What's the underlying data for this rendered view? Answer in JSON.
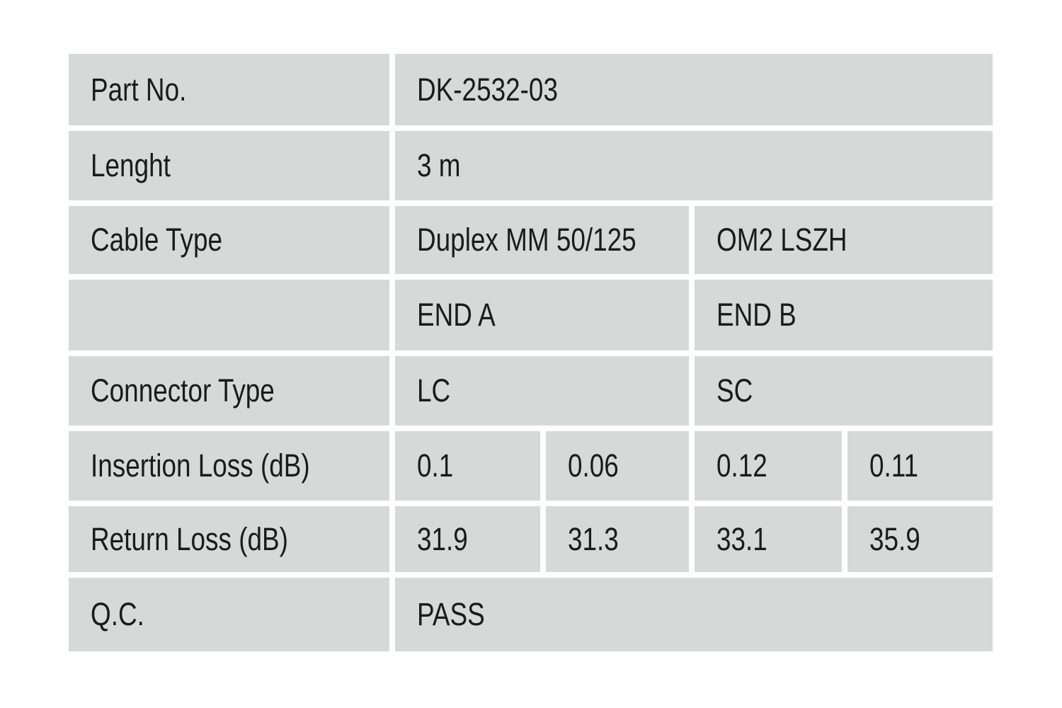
{
  "colors": {
    "page_background": "#ffffff",
    "cell_background": "#d7d8d8",
    "text": "#1b1b1b"
  },
  "table": {
    "rows": [
      {
        "label": "Part No.",
        "values": [
          "DK-2532-03"
        ]
      },
      {
        "label": "Lenght",
        "values": [
          "3 m"
        ]
      },
      {
        "label": "Cable Type",
        "values": [
          "Duplex MM 50/125",
          "OM2 LSZH"
        ]
      },
      {
        "label": "",
        "values": [
          "END A",
          "END B"
        ]
      },
      {
        "label": "Connector Type",
        "values": [
          "LC",
          "SC"
        ]
      },
      {
        "label": "Insertion Loss (dB)",
        "values": [
          "0.1",
          "0.06",
          "0.12",
          "0.11"
        ]
      },
      {
        "label": "Return Loss (dB)",
        "values": [
          "31.9",
          "31.3",
          "33.1",
          "35.9"
        ]
      },
      {
        "label": "Q.C.",
        "values": [
          "PASS"
        ]
      }
    ]
  }
}
